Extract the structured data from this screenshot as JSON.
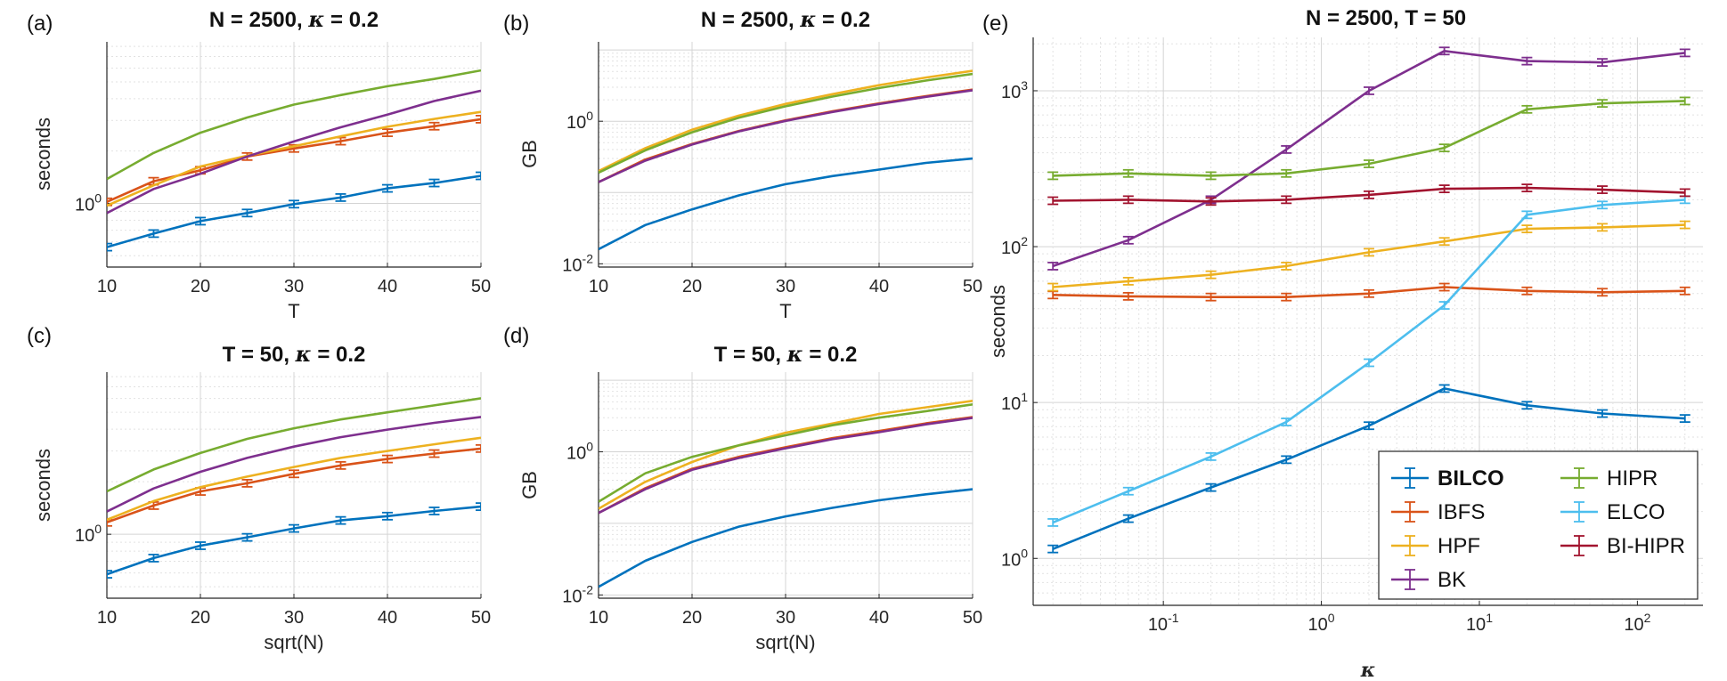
{
  "colors": {
    "BILCO": "#0072BD",
    "IBFS": "#D95319",
    "HPF": "#EDB120",
    "BK": "#7E2F8E",
    "HIPR": "#77AC30",
    "ELCO": "#4DBEEE",
    "BI-HIPR": "#A2142F"
  },
  "chart_data": [
    {
      "letter": "(a)",
      "type": "line",
      "title": "N = 2500, ",
      "title_kappa": "κ",
      "title_tail": " = 0.2",
      "xlabel": "T",
      "ylabel": "seconds",
      "yscale": "log",
      "xlim": [
        10,
        50
      ],
      "ylim": [
        0.43,
        8.5
      ],
      "xticks": [
        10,
        20,
        30,
        40,
        50
      ],
      "xtick_labels": [
        "10",
        "20",
        "30",
        "40",
        "50"
      ],
      "yticks": [
        1
      ],
      "ytick_labels": [
        "10^0"
      ],
      "x": [
        10,
        15,
        20,
        25,
        30,
        35,
        40,
        45,
        50
      ],
      "series": [
        {
          "key": "BILCO",
          "values": [
            0.56,
            0.67,
            0.79,
            0.88,
            0.99,
            1.08,
            1.22,
            1.31,
            1.44
          ],
          "err": true
        },
        {
          "key": "IBFS",
          "values": [
            1.02,
            1.34,
            1.55,
            1.86,
            2.07,
            2.28,
            2.55,
            2.78,
            3.05
          ],
          "err": true
        },
        {
          "key": "HPF",
          "values": [
            0.97,
            1.27,
            1.63,
            1.88,
            2.13,
            2.43,
            2.76,
            3.06,
            3.36
          ],
          "err": false
        },
        {
          "key": "BK",
          "values": [
            0.88,
            1.21,
            1.48,
            1.86,
            2.27,
            2.74,
            3.24,
            3.88,
            4.45
          ],
          "err": false
        },
        {
          "key": "HIPR",
          "values": [
            1.38,
            1.95,
            2.55,
            3.12,
            3.7,
            4.2,
            4.72,
            5.2,
            5.82
          ],
          "err": false
        }
      ]
    },
    {
      "letter": "(b)",
      "type": "line",
      "title": "N = 2500, ",
      "title_kappa": "κ",
      "title_tail": " = 0.2",
      "xlabel": "T",
      "ylabel": "GB",
      "yscale": "log",
      "xlim": [
        10,
        50
      ],
      "ylim": [
        0.009,
        13
      ],
      "xticks": [
        10,
        20,
        30,
        40,
        50
      ],
      "xtick_labels": [
        "10",
        "20",
        "30",
        "40",
        "50"
      ],
      "yticks": [
        0.01,
        1
      ],
      "ytick_labels": [
        "10^-2",
        "10^0"
      ],
      "x": [
        10,
        15,
        20,
        25,
        30,
        35,
        40,
        45,
        50
      ],
      "series": [
        {
          "key": "BILCO",
          "values": [
            0.016,
            0.035,
            0.058,
            0.091,
            0.131,
            0.17,
            0.21,
            0.26,
            0.3
          ],
          "err": false
        },
        {
          "key": "IBFS",
          "values": [
            0.14,
            0.29,
            0.48,
            0.73,
            1.03,
            1.38,
            1.78,
            2.25,
            2.78
          ],
          "err": false
        },
        {
          "key": "BK",
          "values": [
            0.14,
            0.28,
            0.47,
            0.72,
            1.01,
            1.35,
            1.74,
            2.2,
            2.72
          ],
          "err": false
        },
        {
          "key": "HPF",
          "values": [
            0.2,
            0.42,
            0.76,
            1.2,
            1.75,
            2.4,
            3.2,
            4.1,
            5.1
          ],
          "err": false
        },
        {
          "key": "HIPR",
          "values": [
            0.19,
            0.39,
            0.7,
            1.12,
            1.62,
            2.22,
            2.92,
            3.72,
            4.62
          ],
          "err": false
        }
      ]
    },
    {
      "letter": "(c)",
      "type": "line",
      "title": "T = 50, ",
      "title_kappa": "κ",
      "title_tail": " = 0.2",
      "xlabel": "sqrt(N)",
      "ylabel": "seconds",
      "yscale": "log",
      "xlim": [
        10,
        50
      ],
      "ylim": [
        0.43,
        8.5
      ],
      "xticks": [
        10,
        20,
        30,
        40,
        50
      ],
      "xtick_labels": [
        "10",
        "20",
        "30",
        "40",
        "50"
      ],
      "yticks": [
        1
      ],
      "ytick_labels": [
        "10^0"
      ],
      "x": [
        10,
        15,
        20,
        25,
        30,
        35,
        40,
        45,
        50
      ],
      "series": [
        {
          "key": "BILCO",
          "values": [
            0.59,
            0.73,
            0.86,
            0.96,
            1.08,
            1.2,
            1.27,
            1.36,
            1.44
          ],
          "err": true
        },
        {
          "key": "IBFS",
          "values": [
            1.17,
            1.46,
            1.76,
            1.96,
            2.22,
            2.48,
            2.7,
            2.9,
            3.1
          ],
          "err": true
        },
        {
          "key": "HPF",
          "values": [
            1.21,
            1.55,
            1.86,
            2.14,
            2.43,
            2.74,
            3.0,
            3.28,
            3.57
          ],
          "err": false
        },
        {
          "key": "BK",
          "values": [
            1.35,
            1.83,
            2.28,
            2.74,
            3.18,
            3.6,
            3.98,
            4.35,
            4.7
          ],
          "err": false
        },
        {
          "key": "HIPR",
          "values": [
            1.76,
            2.35,
            2.92,
            3.52,
            4.05,
            4.55,
            5.0,
            5.48,
            6.02
          ],
          "err": false
        }
      ]
    },
    {
      "letter": "(d)",
      "type": "line",
      "title": "T = 50, ",
      "title_kappa": "κ",
      "title_tail": " = 0.2",
      "xlabel": "sqrt(N)",
      "ylabel": "GB",
      "yscale": "log",
      "xlim": [
        10,
        50
      ],
      "ylim": [
        0.009,
        13
      ],
      "xticks": [
        10,
        20,
        30,
        40,
        50
      ],
      "xtick_labels": [
        "10",
        "20",
        "30",
        "40",
        "50"
      ],
      "yticks": [
        0.01,
        1
      ],
      "ytick_labels": [
        "10^-2",
        "10^0"
      ],
      "x": [
        10,
        15,
        20,
        25,
        30,
        35,
        40,
        45,
        50
      ],
      "series": [
        {
          "key": "BILCO",
          "values": [
            0.013,
            0.03,
            0.055,
            0.09,
            0.125,
            0.165,
            0.21,
            0.255,
            0.3
          ],
          "err": false
        },
        {
          "key": "IBFS",
          "values": [
            0.14,
            0.31,
            0.58,
            0.85,
            1.16,
            1.55,
            1.95,
            2.5,
            3.05
          ],
          "err": false
        },
        {
          "key": "BK",
          "values": [
            0.14,
            0.3,
            0.56,
            0.82,
            1.12,
            1.5,
            1.88,
            2.42,
            2.98
          ],
          "err": false
        },
        {
          "key": "HPF",
          "values": [
            0.16,
            0.38,
            0.72,
            1.23,
            1.85,
            2.48,
            3.38,
            4.18,
            5.15
          ],
          "err": false
        },
        {
          "key": "HIPR",
          "values": [
            0.2,
            0.5,
            0.85,
            1.23,
            1.7,
            2.35,
            3.0,
            3.7,
            4.6
          ],
          "err": false
        }
      ]
    },
    {
      "letter": "(e)",
      "type": "line",
      "title": "N = 2500, T = 50",
      "title_kappa": "",
      "title_tail": "",
      "xlabel": "κ",
      "ylabel": "seconds",
      "xscale": "log",
      "yscale": "log",
      "xlim": [
        0.015,
        260
      ],
      "ylim": [
        0.5,
        2200
      ],
      "xticks": [
        0.1,
        1,
        10,
        100
      ],
      "xtick_labels": [
        "10^-1",
        "10^0",
        "10^1",
        "10^2"
      ],
      "yticks": [
        1,
        10,
        100,
        1000
      ],
      "ytick_labels": [
        "10^0",
        "10^1",
        "10^2",
        "10^3"
      ],
      "x": [
        0.02,
        0.06,
        0.2,
        0.6,
        2,
        6,
        20,
        60,
        200
      ],
      "series": [
        {
          "key": "BILCO",
          "values": [
            1.15,
            1.8,
            2.85,
            4.3,
            7.1,
            12.3,
            9.6,
            8.5,
            7.9
          ],
          "err": true
        },
        {
          "key": "IBFS",
          "values": [
            49,
            48,
            47.5,
            47.5,
            50,
            55,
            52,
            51,
            52
          ],
          "err": true
        },
        {
          "key": "HPF",
          "values": [
            55,
            60,
            66,
            75,
            92,
            108,
            130,
            133,
            138
          ],
          "err": true
        },
        {
          "key": "BK",
          "values": [
            75,
            110,
            200,
            420,
            1000,
            1800,
            1550,
            1520,
            1750
          ],
          "err": true
        },
        {
          "key": "HIPR",
          "values": [
            285,
            295,
            285,
            295,
            340,
            430,
            760,
            830,
            860
          ],
          "err": true
        },
        {
          "key": "ELCO",
          "values": [
            1.7,
            2.7,
            4.5,
            7.5,
            18,
            42,
            160,
            185,
            200
          ],
          "err": true
        },
        {
          "key": "BI-HIPR",
          "values": [
            197,
            200,
            195,
            200,
            215,
            235,
            238,
            232,
            222
          ],
          "err": true
        }
      ],
      "legend": {
        "placement": "bottom-right",
        "entries": [
          {
            "key": "BILCO",
            "label": "BILCO",
            "bold": true
          },
          {
            "key": "HIPR",
            "label": "HIPR",
            "bold": false
          },
          {
            "key": "IBFS",
            "label": "IBFS",
            "bold": false
          },
          {
            "key": "ELCO",
            "label": "ELCO",
            "bold": false
          },
          {
            "key": "HPF",
            "label": "HPF",
            "bold": false
          },
          {
            "key": "BI-HIPR",
            "label": "BI-HIPR",
            "bold": false
          },
          {
            "key": "BK",
            "label": "BK",
            "bold": false
          }
        ]
      }
    }
  ]
}
